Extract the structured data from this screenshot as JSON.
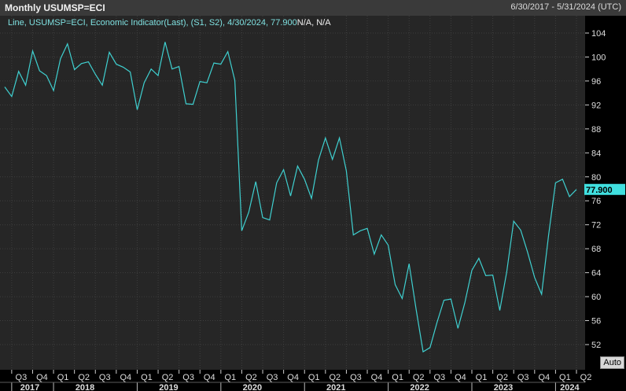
{
  "header": {
    "title": "Monthly USUMSP=ECI",
    "range": "6/30/2017 - 5/31/2024 (UTC)"
  },
  "legend": {
    "text": "Line, USUMSP=ECI, Economic Indicator(Last), (S1, S2), 4/30/2024, 77.900",
    "suffix": "N/A, N/A"
  },
  "last_value_label": "77.900",
  "auto_button": "Auto",
  "colors": {
    "line": "#3fd0d0",
    "last_value_bg": "#40e0e0",
    "background": "#262626"
  },
  "chart_data": {
    "type": "line",
    "title": "Monthly USUMSP=ECI",
    "ylim": [
      49,
      106
    ],
    "yticks": [
      52,
      56,
      60,
      64,
      68,
      72,
      76,
      80,
      84,
      88,
      92,
      96,
      100,
      104
    ],
    "grid": true,
    "legend_placement": "top-left",
    "x_start": "2017-06",
    "x_end": "2024-04",
    "quarter_ticks": [
      {
        "label": "Q3",
        "month": "2017-07"
      },
      {
        "label": "Q4",
        "month": "2017-10"
      },
      {
        "label": "Q1",
        "month": "2018-01"
      },
      {
        "label": "Q2",
        "month": "2018-04"
      },
      {
        "label": "Q3",
        "month": "2018-07"
      },
      {
        "label": "Q4",
        "month": "2018-10"
      },
      {
        "label": "Q1",
        "month": "2019-01"
      },
      {
        "label": "Q2",
        "month": "2019-04"
      },
      {
        "label": "Q3",
        "month": "2019-07"
      },
      {
        "label": "Q4",
        "month": "2019-10"
      },
      {
        "label": "Q1",
        "month": "2020-01"
      },
      {
        "label": "Q2",
        "month": "2020-04"
      },
      {
        "label": "Q3",
        "month": "2020-07"
      },
      {
        "label": "Q4",
        "month": "2020-10"
      },
      {
        "label": "Q1",
        "month": "2021-01"
      },
      {
        "label": "Q2",
        "month": "2021-04"
      },
      {
        "label": "Q3",
        "month": "2021-07"
      },
      {
        "label": "Q4",
        "month": "2021-10"
      },
      {
        "label": "Q1",
        "month": "2022-01"
      },
      {
        "label": "Q2",
        "month": "2022-04"
      },
      {
        "label": "Q3",
        "month": "2022-07"
      },
      {
        "label": "Q4",
        "month": "2022-10"
      },
      {
        "label": "Q1",
        "month": "2023-01"
      },
      {
        "label": "Q2",
        "month": "2023-04"
      },
      {
        "label": "Q3",
        "month": "2023-07"
      },
      {
        "label": "Q4",
        "month": "2023-10"
      },
      {
        "label": "Q1",
        "month": "2024-01"
      },
      {
        "label": "Q2",
        "month": "2024-04"
      }
    ],
    "year_ticks": [
      {
        "label": "2017",
        "month": "2017-07"
      },
      {
        "label": "2018",
        "month": "2018-01"
      },
      {
        "label": "2019",
        "month": "2019-01"
      },
      {
        "label": "2020",
        "month": "2020-01"
      },
      {
        "label": "2021",
        "month": "2021-01"
      },
      {
        "label": "2022",
        "month": "2022-01"
      },
      {
        "label": "2023",
        "month": "2023-01"
      },
      {
        "label": "2024",
        "month": "2024-01"
      }
    ],
    "series": [
      {
        "values": [
          95.0,
          93.4,
          97.6,
          95.3,
          101.0,
          97.7,
          96.9,
          94.4,
          99.7,
          102.2,
          97.9,
          98.9,
          99.2,
          97.1,
          95.3,
          100.8,
          98.8,
          98.3,
          97.5,
          91.2,
          95.7,
          98.0,
          96.9,
          102.5,
          98.0,
          98.4,
          92.2,
          92.1,
          95.9,
          95.7,
          99.0,
          98.8,
          100.9,
          96.1,
          71.0,
          74.1,
          79.2,
          73.2,
          72.8,
          79.0,
          81.2,
          76.8,
          81.8,
          79.6,
          76.4,
          82.8,
          86.5,
          82.9,
          86.5,
          81.0,
          70.3,
          71.0,
          71.4,
          67.1,
          70.3,
          68.6,
          62.0,
          59.7,
          65.5,
          57.9,
          50.8,
          51.5,
          55.7,
          59.4,
          59.6,
          54.7,
          59.0,
          64.4,
          66.4,
          63.5,
          63.6,
          57.7,
          64.1,
          72.6,
          71.1,
          67.4,
          63.2,
          60.4,
          70.2,
          79.0,
          79.6,
          76.7,
          77.9
        ]
      }
    ]
  }
}
